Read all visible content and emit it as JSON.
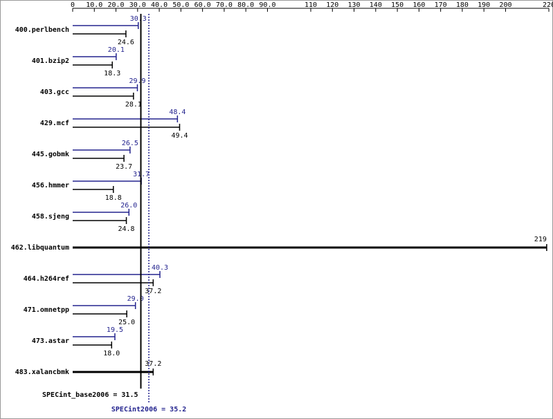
{
  "chart_data": {
    "type": "bar",
    "orientation": "horizontal",
    "categories": [
      "400.perlbench",
      "401.bzip2",
      "403.gcc",
      "429.mcf",
      "445.gobmk",
      "456.hmmer",
      "458.sjeng",
      "462.libquantum",
      "464.h264ref",
      "471.omnetpp",
      "473.astar",
      "483.xalancbmk"
    ],
    "series": [
      {
        "color": "#23238e",
        "values": [
          30.3,
          20.1,
          29.9,
          48.4,
          26.5,
          31.7,
          26.0,
          null,
          40.3,
          29.0,
          19.5,
          null
        ],
        "value_labels": [
          "30.3",
          "20.1",
          "29.9",
          "48.4",
          "26.5",
          "31.7",
          "26.0",
          null,
          "40.3",
          "29.0",
          "19.5",
          null
        ]
      },
      {
        "color": "#000000",
        "values": [
          24.6,
          18.3,
          28.1,
          49.4,
          23.7,
          18.8,
          24.8,
          219,
          37.2,
          25.0,
          18.0,
          37.2
        ],
        "value_labels": [
          "24.6",
          "18.3",
          "28.1",
          "49.4",
          "23.7",
          "18.8",
          "24.8",
          "219",
          "37.2",
          "25.0",
          "18.0",
          "37.2"
        ]
      }
    ],
    "xlim": [
      0,
      220
    ],
    "xticks": [
      0,
      {
        "value": 10,
        "label": "10.0"
      },
      {
        "value": 20,
        "label": "20.0"
      },
      {
        "value": 30,
        "label": "30.0"
      },
      {
        "value": 40,
        "label": "40.0"
      },
      {
        "value": 50,
        "label": "50.0"
      },
      {
        "value": 60,
        "label": "60.0"
      },
      {
        "value": 70,
        "label": "70.0"
      },
      {
        "value": 80,
        "label": "80.0"
      },
      {
        "value": 90,
        "label": "90.0"
      },
      110,
      120,
      130,
      140,
      150,
      160,
      170,
      180,
      190,
      200,
      220
    ],
    "reference_lines": [
      {
        "label": "SPECint_base2006 = 31.5",
        "value": 31.5,
        "color": "#000000",
        "dashed": false
      },
      {
        "label": "SPECint2006 = 35.2",
        "value": 35.2,
        "color": "#23238e",
        "dashed": true
      }
    ]
  }
}
